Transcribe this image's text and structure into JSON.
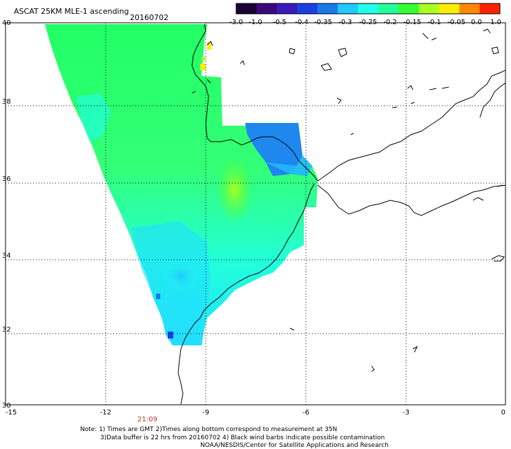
{
  "header": {
    "title": "ASCAT 25KM MLE-1 ascending",
    "date": "20160702"
  },
  "colorbar": {
    "labels": [
      "-3.0",
      "-1.0",
      "-0.5",
      "-0.4",
      "-0.35",
      "-0.3",
      "-0.25",
      "-0.2",
      "-0.15",
      "-0.1",
      "-0.05",
      "0.0",
      "1.0"
    ],
    "colors": [
      "#1a0033",
      "#3a0a7a",
      "#3a1ab8",
      "#1a40e0",
      "#1a7ae8",
      "#22c8ff",
      "#22ffee",
      "#22ff99",
      "#33ff33",
      "#aaff22",
      "#ffee00",
      "#ff8800",
      "#ff2200"
    ]
  },
  "axes": {
    "x_ticks": [
      "-15",
      "-12",
      "-9",
      "-6",
      "-3",
      "0"
    ],
    "y_ticks": [
      "40",
      "38",
      "36",
      "34",
      "32",
      "30"
    ]
  },
  "time_label": "21:09",
  "notes": [
    "Note: 1) Times are GMT 2)Times along bottom correspond to measurement at 35N",
    "3)Data buffer is 22 hrs from 20160702 4) Black wind barbs indicate possible contamination",
    "NOAA/NESDIS/Center for Satellite Applications and Research"
  ]
}
